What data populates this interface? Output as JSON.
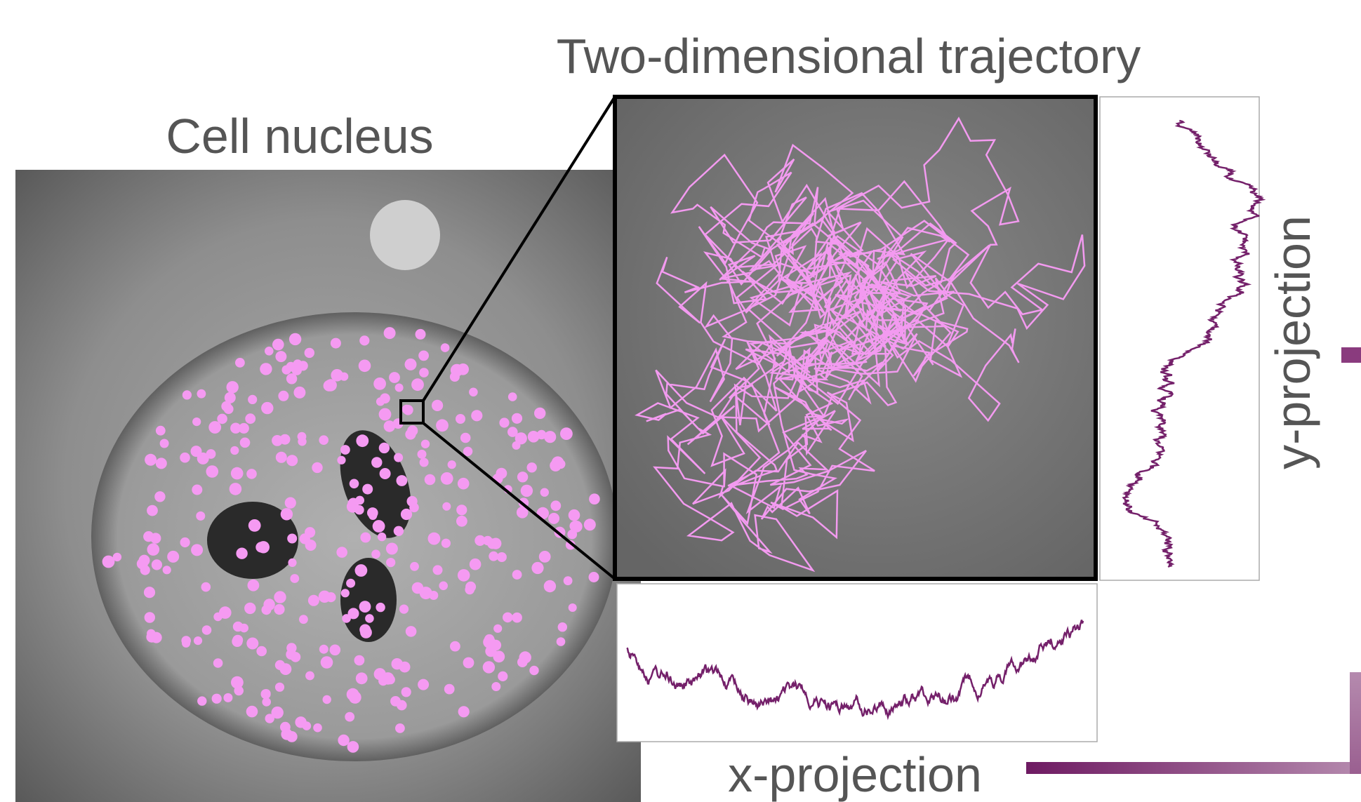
{
  "title": "Two-dimensional trajectory",
  "image_label": "Cell nucleus",
  "y_projection_label": "y-projection",
  "x_projection_label": "x-projection"
}
